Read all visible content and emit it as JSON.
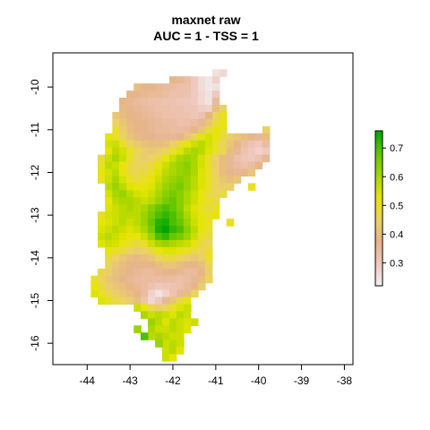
{
  "chart_data": {
    "type": "heatmap",
    "title": "maxnet raw",
    "subtitle": "AUC = 1 - TSS = 1",
    "xlabel": "",
    "ylabel": "",
    "xlim": [
      -44.8,
      -37.8
    ],
    "ylim": [
      -16.5,
      -9.2
    ],
    "x_ticks": [
      -44,
      -43,
      -42,
      -41,
      -40,
      -39,
      -38
    ],
    "y_ticks": [
      -10,
      -11,
      -12,
      -13,
      -14,
      -15,
      -16
    ],
    "x_tick_labels": [
      "-44",
      "-43",
      "-42",
      "-41",
      "-40",
      "-39",
      "-38"
    ],
    "y_tick_labels": [
      "-10",
      "-11",
      "-12",
      "-13",
      "-14",
      "-15",
      "-16"
    ],
    "legend": {
      "placement": "right",
      "range": [
        0.22,
        0.76
      ],
      "ticks": [
        0.3,
        0.4,
        0.5,
        0.6,
        0.7
      ],
      "tick_labels": [
        "0.3",
        "0.4",
        "0.5",
        "0.6",
        "0.7"
      ],
      "palette": [
        "#f2f2f2",
        "#f0c9c0",
        "#e6b48a",
        "#ebd266",
        "#e6e600",
        "#a6d600",
        "#63c600",
        "#00a600"
      ]
    },
    "cell_size_deg": 0.1667,
    "rows": [
      {
        "y": -9.667,
        "x0": -41.0,
        "values": [
          0.25,
          0.27
        ]
      },
      {
        "y": -9.833,
        "x0": -42.0,
        "values": [
          0.38,
          0.36,
          0.34,
          0.3,
          0.26,
          0.24,
          0.28
        ]
      },
      {
        "y": -10.0,
        "x0": -42.83,
        "values": [
          0.4,
          0.38,
          0.37,
          0.36,
          0.35,
          0.34,
          0.33,
          0.33,
          0.3,
          0.26,
          0.24,
          0.25
        ]
      },
      {
        "y": -10.167,
        "x0": -43.0,
        "values": [
          0.38,
          0.37,
          0.36,
          0.35,
          0.35,
          0.34,
          0.33,
          0.33,
          0.32,
          0.3,
          0.27,
          0.25,
          0.3
        ]
      },
      {
        "y": -10.333,
        "x0": -43.17,
        "values": [
          0.38,
          0.36,
          0.35,
          0.34,
          0.33,
          0.33,
          0.32,
          0.32,
          0.31,
          0.31,
          0.3,
          0.27,
          0.25,
          0.35
        ]
      },
      {
        "y": -10.5,
        "x0": -43.17,
        "values": [
          0.39,
          0.37,
          0.36,
          0.35,
          0.34,
          0.33,
          0.33,
          0.32,
          0.32,
          0.31,
          0.31,
          0.29,
          0.28,
          0.4,
          0.45
        ]
      },
      {
        "y": -10.667,
        "x0": -43.33,
        "values": [
          0.42,
          0.4,
          0.38,
          0.37,
          0.36,
          0.35,
          0.34,
          0.33,
          0.33,
          0.32,
          0.32,
          0.31,
          0.32,
          0.38,
          0.46,
          0.5
        ]
      },
      {
        "y": -10.833,
        "x0": -43.33,
        "values": [
          0.45,
          0.42,
          0.39,
          0.38,
          0.37,
          0.36,
          0.35,
          0.34,
          0.34,
          0.33,
          0.33,
          0.34,
          0.36,
          0.42,
          0.48,
          0.52
        ]
      },
      {
        "y": -11.0,
        "x0": -43.33,
        "values": [
          0.5,
          0.44,
          0.4,
          0.38,
          0.37,
          0.36,
          0.35,
          0.35,
          0.34,
          0.34,
          0.35,
          0.38,
          0.42,
          0.48,
          0.52,
          0.5,
          0.0,
          0.0,
          0.0,
          0.0,
          0.0,
          0.45
        ]
      },
      {
        "y": -11.167,
        "x0": -43.5,
        "values": [
          0.52,
          0.5,
          0.46,
          0.42,
          0.39,
          0.38,
          0.37,
          0.36,
          0.36,
          0.36,
          0.38,
          0.42,
          0.47,
          0.52,
          0.55,
          0.52,
          0.48,
          0.44,
          0.42,
          0.4,
          0.38,
          0.36,
          0.4
        ]
      },
      {
        "y": -11.333,
        "x0": -43.5,
        "values": [
          0.55,
          0.56,
          0.5,
          0.46,
          0.43,
          0.41,
          0.4,
          0.4,
          0.41,
          0.44,
          0.48,
          0.52,
          0.56,
          0.58,
          0.55,
          0.5,
          0.46,
          0.42,
          0.38,
          0.34,
          0.32,
          0.3,
          0.34
        ]
      },
      {
        "y": -11.5,
        "x0": -43.5,
        "values": [
          0.52,
          0.58,
          0.55,
          0.5,
          0.47,
          0.44,
          0.43,
          0.44,
          0.46,
          0.5,
          0.54,
          0.58,
          0.6,
          0.58,
          0.54,
          0.5,
          0.46,
          0.4,
          0.36,
          0.32,
          0.3,
          0.28,
          0.3
        ]
      },
      {
        "y": -11.667,
        "x0": -43.67,
        "values": [
          0.48,
          0.56,
          0.6,
          0.56,
          0.5,
          0.46,
          0.44,
          0.45,
          0.48,
          0.52,
          0.56,
          0.6,
          0.62,
          0.6,
          0.55,
          0.5,
          0.45,
          0.4,
          0.36,
          0.33,
          0.31,
          0.3,
          0.32,
          0.36
        ]
      },
      {
        "y": -11.833,
        "x0": -43.67,
        "values": [
          0.5,
          0.58,
          0.56,
          0.52,
          0.48,
          0.46,
          0.46,
          0.48,
          0.52,
          0.56,
          0.6,
          0.62,
          0.64,
          0.6,
          0.55,
          0.5,
          0.44,
          0.4,
          0.36,
          0.34,
          0.33,
          0.34,
          0.38
        ]
      },
      {
        "y": -12.0,
        "x0": -43.67,
        "values": [
          0.52,
          0.55,
          0.58,
          0.52,
          0.48,
          0.47,
          0.48,
          0.5,
          0.54,
          0.58,
          0.6,
          0.62,
          0.63,
          0.6,
          0.54,
          0.5,
          0.45,
          0.4,
          0.37,
          0.36,
          0.38,
          0.42
        ]
      },
      {
        "y": -12.167,
        "x0": -43.67,
        "values": [
          0.5,
          0.56,
          0.6,
          0.55,
          0.5,
          0.48,
          0.5,
          0.52,
          0.56,
          0.6,
          0.62,
          0.64,
          0.62,
          0.58,
          0.54,
          0.5,
          0.46,
          0.42,
          0.4,
          0.42
        ]
      },
      {
        "y": -12.333,
        "x0": -43.5,
        "values": [
          0.58,
          0.62,
          0.58,
          0.54,
          0.52,
          0.52,
          0.54,
          0.58,
          0.62,
          0.64,
          0.66,
          0.62,
          0.58,
          0.54,
          0.5,
          0.46,
          0.44,
          0.45,
          0.0,
          0.0,
          0.5
        ]
      },
      {
        "y": -12.5,
        "x0": -43.5,
        "values": [
          0.55,
          0.6,
          0.62,
          0.58,
          0.55,
          0.54,
          0.56,
          0.6,
          0.64,
          0.66,
          0.64,
          0.6,
          0.56,
          0.52,
          0.48,
          0.46,
          0.48
        ]
      },
      {
        "y": -12.667,
        "x0": -43.5,
        "values": [
          0.52,
          0.58,
          0.6,
          0.6,
          0.58,
          0.56,
          0.58,
          0.62,
          0.66,
          0.68,
          0.64,
          0.6,
          0.56,
          0.52,
          0.5,
          0.48
        ]
      },
      {
        "y": -12.833,
        "x0": -43.5,
        "values": [
          0.54,
          0.56,
          0.58,
          0.6,
          0.58,
          0.6,
          0.64,
          0.68,
          0.7,
          0.68,
          0.64,
          0.58,
          0.54,
          0.5,
          0.48,
          0.5
        ]
      },
      {
        "y": -13.0,
        "x0": -43.67,
        "values": [
          0.5,
          0.55,
          0.56,
          0.58,
          0.58,
          0.58,
          0.62,
          0.66,
          0.7,
          0.72,
          0.7,
          0.66,
          0.6,
          0.55,
          0.52,
          0.5,
          0.52
        ]
      },
      {
        "y": -13.167,
        "x0": -43.67,
        "values": [
          0.52,
          0.54,
          0.56,
          0.58,
          0.56,
          0.58,
          0.62,
          0.68,
          0.73,
          0.74,
          0.7,
          0.68,
          0.62,
          0.56,
          0.52,
          0.5,
          0.0,
          0.0,
          0.5
        ]
      },
      {
        "y": -13.333,
        "x0": -43.67,
        "values": [
          0.54,
          0.56,
          0.58,
          0.56,
          0.54,
          0.56,
          0.6,
          0.66,
          0.74,
          0.76,
          0.72,
          0.7,
          0.64,
          0.58,
          0.52,
          0.5
        ]
      },
      {
        "y": -13.5,
        "x0": -43.67,
        "values": [
          0.56,
          0.58,
          0.56,
          0.54,
          0.52,
          0.52,
          0.56,
          0.62,
          0.7,
          0.72,
          0.68,
          0.66,
          0.62,
          0.56,
          0.5,
          0.48
        ]
      },
      {
        "y": -13.667,
        "x0": -43.67,
        "values": [
          0.54,
          0.56,
          0.55,
          0.52,
          0.5,
          0.48,
          0.5,
          0.56,
          0.6,
          0.62,
          0.6,
          0.58,
          0.56,
          0.52,
          0.48,
          0.46
        ]
      },
      {
        "y": -13.833,
        "x0": -43.5,
        "values": [
          0.52,
          0.5,
          0.48,
          0.45,
          0.44,
          0.45,
          0.48,
          0.52,
          0.54,
          0.54,
          0.52,
          0.5,
          0.48,
          0.46,
          0.5
        ]
      },
      {
        "y": -14.0,
        "x0": -43.5,
        "values": [
          0.48,
          0.45,
          0.42,
          0.4,
          0.39,
          0.4,
          0.42,
          0.46,
          0.48,
          0.48,
          0.46,
          0.44,
          0.42,
          0.44,
          0.5
        ]
      },
      {
        "y": -14.167,
        "x0": -43.5,
        "values": [
          0.46,
          0.42,
          0.4,
          0.38,
          0.37,
          0.37,
          0.38,
          0.4,
          0.42,
          0.42,
          0.4,
          0.38,
          0.38,
          0.4,
          0.46
        ]
      },
      {
        "y": -14.333,
        "x0": -43.67,
        "values": [
          0.48,
          0.44,
          0.41,
          0.39,
          0.37,
          0.36,
          0.35,
          0.35,
          0.36,
          0.37,
          0.37,
          0.36,
          0.35,
          0.35,
          0.38,
          0.44
        ]
      },
      {
        "y": -14.5,
        "x0": -43.83,
        "values": [
          0.5,
          0.46,
          0.42,
          0.4,
          0.38,
          0.36,
          0.35,
          0.34,
          0.34,
          0.34,
          0.34,
          0.34,
          0.33,
          0.34,
          0.36,
          0.4,
          0.46
        ]
      },
      {
        "y": -14.667,
        "x0": -43.83,
        "values": [
          0.52,
          0.48,
          0.44,
          0.42,
          0.4,
          0.38,
          0.36,
          0.34,
          0.32,
          0.3,
          0.31,
          0.32,
          0.33,
          0.35,
          0.38,
          0.44
        ]
      },
      {
        "y": -14.833,
        "x0": -43.83,
        "values": [
          0.54,
          0.5,
          0.47,
          0.44,
          0.42,
          0.4,
          0.38,
          0.34,
          0.28,
          0.25,
          0.28,
          0.32,
          0.36,
          0.4,
          0.46
        ]
      },
      {
        "y": -15.0,
        "x0": -43.67,
        "values": [
          0.54,
          0.5,
          0.48,
          0.46,
          0.44,
          0.4,
          0.32,
          0.27,
          0.3,
          0.36,
          0.42,
          0.48,
          0.52
        ]
      },
      {
        "y": -15.167,
        "x0": -42.83,
        "values": [
          0.56,
          0.52,
          0.46,
          0.44,
          0.46,
          0.5,
          0.54,
          0.56
        ]
      },
      {
        "y": -15.333,
        "x0": -42.67,
        "values": [
          0.6,
          0.56,
          0.58,
          0.56,
          0.54,
          0.58,
          0.56
        ]
      },
      {
        "y": -15.5,
        "x0": -42.5,
        "values": [
          0.62,
          0.58,
          0.54,
          0.58,
          0.56,
          0.54,
          0.56
        ]
      },
      {
        "y": -15.667,
        "x0": -42.5,
        "values": [
          0.6,
          0.56,
          0.56,
          0.58,
          0.56,
          0.54
        ]
      },
      {
        "y": -15.833,
        "x0": -42.5,
        "values": [
          0.58,
          0.6,
          0.58,
          0.56,
          0.56
        ]
      },
      {
        "y": -16.0,
        "x0": -42.33,
        "values": [
          0.58,
          0.56,
          0.58,
          0.56
        ]
      },
      {
        "y": -16.167,
        "x0": -42.17,
        "values": [
          0.56,
          0.58,
          0.54
        ]
      },
      {
        "y": -16.333,
        "x0": -42.17,
        "values": [
          0.56,
          0.52
        ]
      }
    ],
    "scattered_cells": [
      {
        "x": -42.83,
        "y": -15.667,
        "value": 0.62
      },
      {
        "x": -42.67,
        "y": -15.833,
        "value": 0.7
      },
      {
        "x": -42.33,
        "y": -16.0,
        "value": 0.62
      },
      {
        "x": -43.83,
        "y": -14.667,
        "value": 0.52
      }
    ]
  }
}
